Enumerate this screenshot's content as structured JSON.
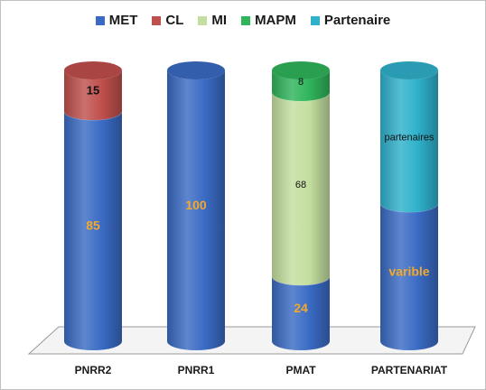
{
  "chart_data": {
    "type": "bar",
    "stacked": true,
    "categories": [
      "PNRR2",
      "PNRR1",
      "PMAT",
      "PARTENARIAT"
    ],
    "series": [
      {
        "name": "MET",
        "color": "#3a6bc4",
        "values": [
          85,
          100,
          24,
          null
        ],
        "labels": [
          "85",
          "100",
          "24",
          "varible"
        ]
      },
      {
        "name": "CL",
        "color": "#c0504d",
        "values": [
          15,
          null,
          null,
          null
        ],
        "labels": [
          "15",
          "",
          "",
          ""
        ]
      },
      {
        "name": "MI",
        "color": "#c4dea0",
        "values": [
          null,
          null,
          68,
          null
        ],
        "labels": [
          "",
          "",
          "68",
          ""
        ]
      },
      {
        "name": "MAPM",
        "color": "#2fb55a",
        "values": [
          null,
          null,
          8,
          null
        ],
        "labels": [
          "",
          "",
          "8",
          ""
        ]
      },
      {
        "name": "Partenaire",
        "color": "#2fb1cc",
        "values": [
          null,
          null,
          null,
          null
        ],
        "labels": [
          "",
          "",
          "",
          "partenaires"
        ]
      }
    ],
    "legend_position": "top",
    "grid": false,
    "ylim": [
      0,
      100
    ]
  }
}
